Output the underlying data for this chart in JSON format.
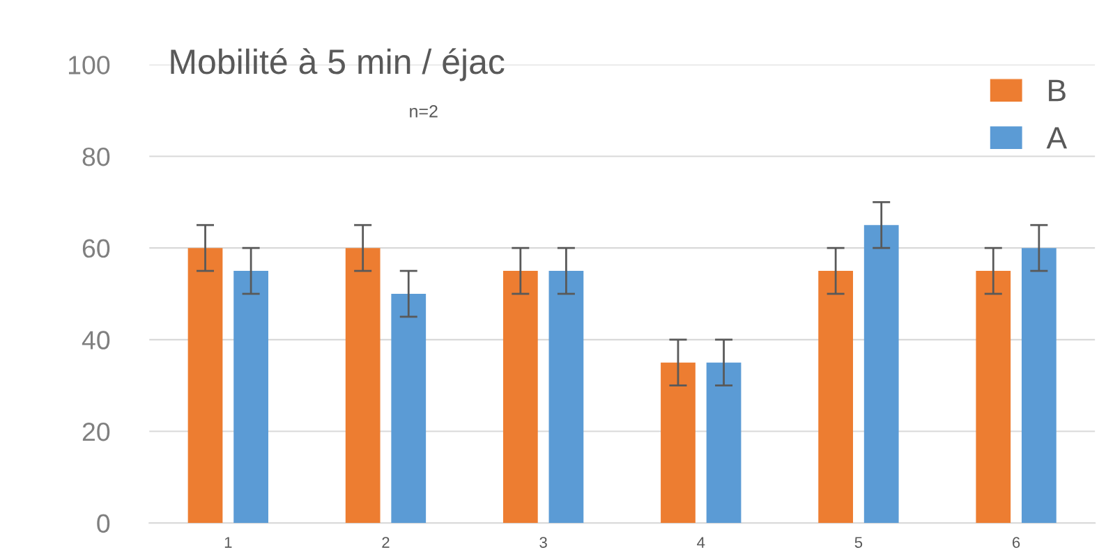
{
  "chart_data": {
    "type": "bar",
    "title": "Mobilité à 5 min / éjac",
    "subtitle": "n=2",
    "categories": [
      "1",
      "2",
      "3",
      "4",
      "5",
      "6"
    ],
    "series": [
      {
        "name": "B",
        "color": "#ed7d31",
        "values": [
          60,
          60,
          55,
          35,
          55,
          55
        ],
        "errors": [
          5,
          5,
          5,
          5,
          5,
          5
        ]
      },
      {
        "name": "A",
        "color": "#5b9bd5",
        "values": [
          55,
          50,
          55,
          35,
          65,
          60
        ],
        "errors": [
          5,
          5,
          5,
          5,
          5,
          5
        ]
      }
    ],
    "ylim": [
      0,
      100
    ],
    "yticks": [
      0,
      20,
      40,
      60,
      80,
      100
    ],
    "grid": "y",
    "legend": "top right"
  }
}
